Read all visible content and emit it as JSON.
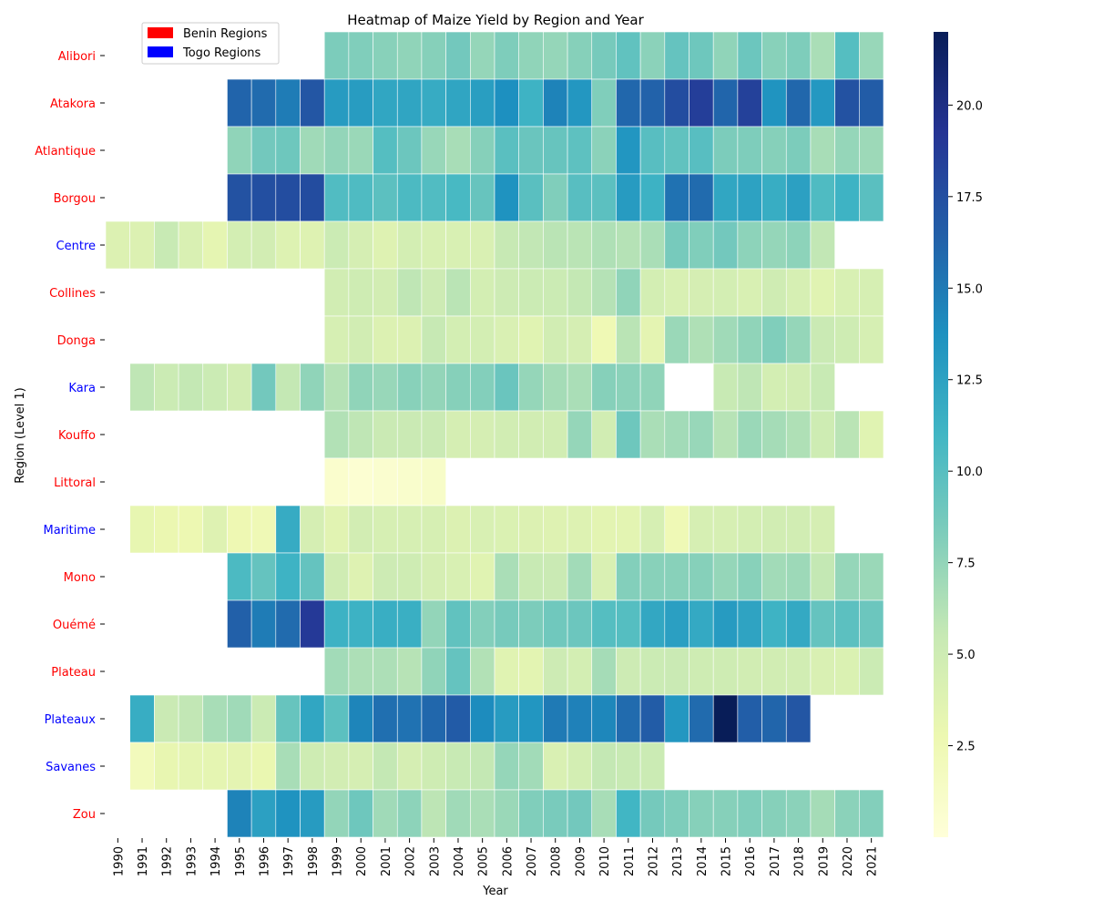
{
  "chart_data": {
    "type": "heatmap",
    "title": "Heatmap of Maize Yield by Region and Year",
    "xlabel": "Year",
    "ylabel": "Region (Level 1)",
    "years": [
      "1990",
      "1991",
      "1992",
      "1993",
      "1994",
      "1995",
      "1996",
      "1997",
      "1998",
      "1999",
      "2000",
      "2001",
      "2002",
      "2003",
      "2004",
      "2005",
      "2006",
      "2007",
      "2008",
      "2009",
      "2010",
      "2011",
      "2012",
      "2013",
      "2014",
      "2015",
      "2016",
      "2017",
      "2018",
      "2019",
      "2020",
      "2021"
    ],
    "regions": [
      {
        "name": "Alibori",
        "country": "Benin",
        "values": [
          null,
          null,
          null,
          null,
          null,
          null,
          null,
          null,
          null,
          8.4,
          8.2,
          7.9,
          7.6,
          8.0,
          8.8,
          7.4,
          8.3,
          7.6,
          7.4,
          8.0,
          8.6,
          9.6,
          7.8,
          9.4,
          9.0,
          7.6,
          9.1,
          7.9,
          8.3,
          6.6,
          10.1,
          7.3
        ]
      },
      {
        "name": "Atakora",
        "country": "Benin",
        "values": [
          null,
          null,
          null,
          null,
          null,
          16.2,
          15.8,
          14.9,
          17.0,
          13.0,
          12.9,
          12.2,
          12.3,
          11.8,
          12.3,
          12.8,
          13.8,
          11.2,
          14.5,
          13.3,
          8.2,
          16.0,
          16.3,
          17.6,
          18.6,
          16.1,
          18.4,
          13.5,
          16.0,
          13.2,
          17.3,
          16.6
        ]
      },
      {
        "name": "Atlantique",
        "country": "Benin",
        "values": [
          null,
          null,
          null,
          null,
          null,
          7.6,
          8.8,
          9.0,
          7.0,
          7.5,
          7.2,
          10.1,
          9.1,
          7.3,
          6.7,
          8.0,
          9.9,
          9.2,
          9.3,
          9.7,
          7.8,
          13.4,
          10.0,
          9.6,
          10.0,
          8.4,
          8.3,
          8.0,
          8.4,
          6.7,
          7.4,
          7.1
        ]
      },
      {
        "name": "Borgou",
        "country": "Benin",
        "values": [
          null,
          null,
          null,
          null,
          null,
          17.3,
          17.5,
          17.6,
          17.7,
          10.3,
          10.4,
          9.8,
          10.5,
          10.3,
          10.7,
          9.3,
          13.6,
          9.9,
          8.2,
          10.0,
          9.8,
          13.0,
          11.3,
          15.4,
          15.8,
          12.2,
          12.5,
          11.7,
          12.6,
          10.4,
          11.2,
          9.9
        ]
      },
      {
        "name": "Centre",
        "country": "Togo",
        "values": [
          4.0,
          4.0,
          5.4,
          4.2,
          3.3,
          4.6,
          4.7,
          3.9,
          3.8,
          5.2,
          4.5,
          3.8,
          4.6,
          4.3,
          4.3,
          4.2,
          5.5,
          5.7,
          6.0,
          6.0,
          6.4,
          6.2,
          6.6,
          8.6,
          8.2,
          8.8,
          7.7,
          7.4,
          7.7,
          5.7,
          null,
          null
        ]
      },
      {
        "name": "Collines",
        "country": "Benin",
        "values": [
          null,
          null,
          null,
          null,
          null,
          null,
          null,
          null,
          null,
          4.8,
          5.0,
          4.7,
          5.8,
          5.1,
          6.0,
          4.6,
          5.1,
          5.2,
          5.2,
          5.6,
          6.2,
          7.6,
          4.6,
          4.3,
          4.5,
          4.6,
          4.3,
          4.9,
          4.4,
          3.7,
          4.3,
          4.4
        ]
      },
      {
        "name": "Donga",
        "country": "Benin",
        "values": [
          null,
          null,
          null,
          null,
          null,
          null,
          null,
          null,
          null,
          4.4,
          4.8,
          4.0,
          4.0,
          5.5,
          4.6,
          4.6,
          4.2,
          3.7,
          4.8,
          4.5,
          2.5,
          6.0,
          3.4,
          7.2,
          6.4,
          7.0,
          7.6,
          8.2,
          7.4,
          5.3,
          5.0,
          4.4
        ]
      },
      {
        "name": "Kara",
        "country": "Togo",
        "values": [
          null,
          5.8,
          5.2,
          5.6,
          5.2,
          4.7,
          8.8,
          5.6,
          7.6,
          6.2,
          7.6,
          7.3,
          7.9,
          7.5,
          8.0,
          8.1,
          9.2,
          7.4,
          6.8,
          6.6,
          8.0,
          7.8,
          7.6,
          null,
          null,
          5.4,
          5.8,
          4.6,
          4.7,
          5.4,
          null,
          null
        ]
      },
      {
        "name": "Kouffo",
        "country": "Benin",
        "values": [
          null,
          null,
          null,
          null,
          null,
          null,
          null,
          null,
          null,
          6.3,
          5.8,
          5.3,
          5.3,
          5.3,
          4.5,
          4.5,
          4.8,
          4.8,
          4.8,
          7.4,
          4.8,
          9.0,
          6.6,
          6.9,
          7.3,
          6.1,
          7.2,
          6.8,
          6.4,
          5.0,
          6.0,
          3.7
        ]
      },
      {
        "name": "Littoral",
        "country": "Benin",
        "values": [
          null,
          null,
          null,
          null,
          null,
          null,
          null,
          null,
          null,
          0.8,
          0.5,
          0.7,
          0.9,
          1.2,
          null,
          null,
          null,
          null,
          null,
          null,
          null,
          null,
          null,
          null,
          null,
          null,
          null,
          null,
          null,
          null,
          null,
          null
        ]
      },
      {
        "name": "Maritime",
        "country": "Togo",
        "values": [
          null,
          3.2,
          2.9,
          2.7,
          3.8,
          2.6,
          2.4,
          11.8,
          4.5,
          3.6,
          4.7,
          4.4,
          4.4,
          4.4,
          4.0,
          4.3,
          4.1,
          4.0,
          3.8,
          3.9,
          3.5,
          3.5,
          4.4,
          2.4,
          4.4,
          4.4,
          4.6,
          4.8,
          4.8,
          4.5,
          null,
          null
        ]
      },
      {
        "name": "Mono",
        "country": "Benin",
        "values": [
          null,
          null,
          null,
          null,
          null,
          10.5,
          9.4,
          11.2,
          9.4,
          4.9,
          3.8,
          5.1,
          5.0,
          4.5,
          4.3,
          3.7,
          6.6,
          5.4,
          5.3,
          6.9,
          4.2,
          8.1,
          7.9,
          7.9,
          8.0,
          7.4,
          7.9,
          6.9,
          7.1,
          5.6,
          7.4,
          7.2
        ]
      },
      {
        "name": "Ouémé",
        "country": "Benin",
        "values": [
          null,
          null,
          null,
          null,
          null,
          16.4,
          14.9,
          15.8,
          18.9,
          11.3,
          11.3,
          11.6,
          11.5,
          7.5,
          9.6,
          8.1,
          8.6,
          8.4,
          8.9,
          9.1,
          10.1,
          10.1,
          12.1,
          12.7,
          12.0,
          13.0,
          12.4,
          11.2,
          12.0,
          9.4,
          9.8,
          9.1
        ]
      },
      {
        "name": "Plateau",
        "country": "Benin",
        "values": [
          null,
          null,
          null,
          null,
          null,
          null,
          null,
          null,
          null,
          6.9,
          6.5,
          6.5,
          6.1,
          7.6,
          9.4,
          6.3,
          3.7,
          3.5,
          5.1,
          4.6,
          6.8,
          5.1,
          5.2,
          5.3,
          5.0,
          5.0,
          4.8,
          4.8,
          4.8,
          4.2,
          4.1,
          5.2
        ]
      },
      {
        "name": "Plateaux",
        "country": "Togo",
        "values": [
          null,
          11.7,
          5.3,
          5.7,
          6.7,
          7.0,
          5.2,
          9.3,
          12.2,
          9.8,
          14.4,
          15.6,
          15.4,
          16.0,
          16.7,
          14.0,
          13.0,
          13.4,
          15.0,
          14.6,
          14.3,
          15.8,
          16.6,
          13.3,
          15.8,
          22.0,
          16.5,
          16.1,
          17.0,
          null,
          null,
          null
        ]
      },
      {
        "name": "Savanes",
        "country": "Togo",
        "values": [
          null,
          2.0,
          3.1,
          3.3,
          3.3,
          3.4,
          3.0,
          6.7,
          5.0,
          4.7,
          4.5,
          5.6,
          4.5,
          5.0,
          5.4,
          5.6,
          7.4,
          6.9,
          4.2,
          4.6,
          5.6,
          5.4,
          5.2,
          null,
          null,
          null,
          null,
          null,
          null,
          null,
          null,
          null
        ]
      },
      {
        "name": "Zou",
        "country": "Benin",
        "values": [
          null,
          null,
          null,
          null,
          null,
          14.5,
          12.6,
          13.6,
          13.0,
          7.5,
          9.0,
          7.0,
          7.7,
          5.9,
          7.0,
          6.6,
          7.2,
          8.2,
          8.5,
          8.8,
          6.7,
          11.0,
          8.7,
          8.3,
          8.0,
          8.0,
          8.2,
          8.0,
          7.8,
          6.8,
          7.8,
          8.1
        ]
      }
    ],
    "vmin": 0,
    "vmax": 22,
    "colorbar_ticks": [
      "2.5",
      "5.0",
      "7.5",
      "10.0",
      "12.5",
      "15.0",
      "17.5",
      "20.0"
    ],
    "colorbar_tick_values": [
      2.5,
      5.0,
      7.5,
      10.0,
      12.5,
      15.0,
      17.5,
      20.0
    ],
    "colormap": "YlGnBu",
    "colormap_stops": [
      "#ffffd9",
      "#edf8b1",
      "#c7e9b4",
      "#7fcdbb",
      "#41b6c4",
      "#1d91c0",
      "#225ea8",
      "#253494",
      "#081d58"
    ],
    "legend": {
      "placement": "top-left",
      "items": [
        {
          "label": "Benin Regions",
          "color": "#ff0000"
        },
        {
          "label": "Togo Regions",
          "color": "#0000ff"
        }
      ]
    },
    "country_label_colors": {
      "Benin": "#ff0000",
      "Togo": "#0000ff"
    },
    "missing_color": "#ffffff",
    "grid": false
  }
}
